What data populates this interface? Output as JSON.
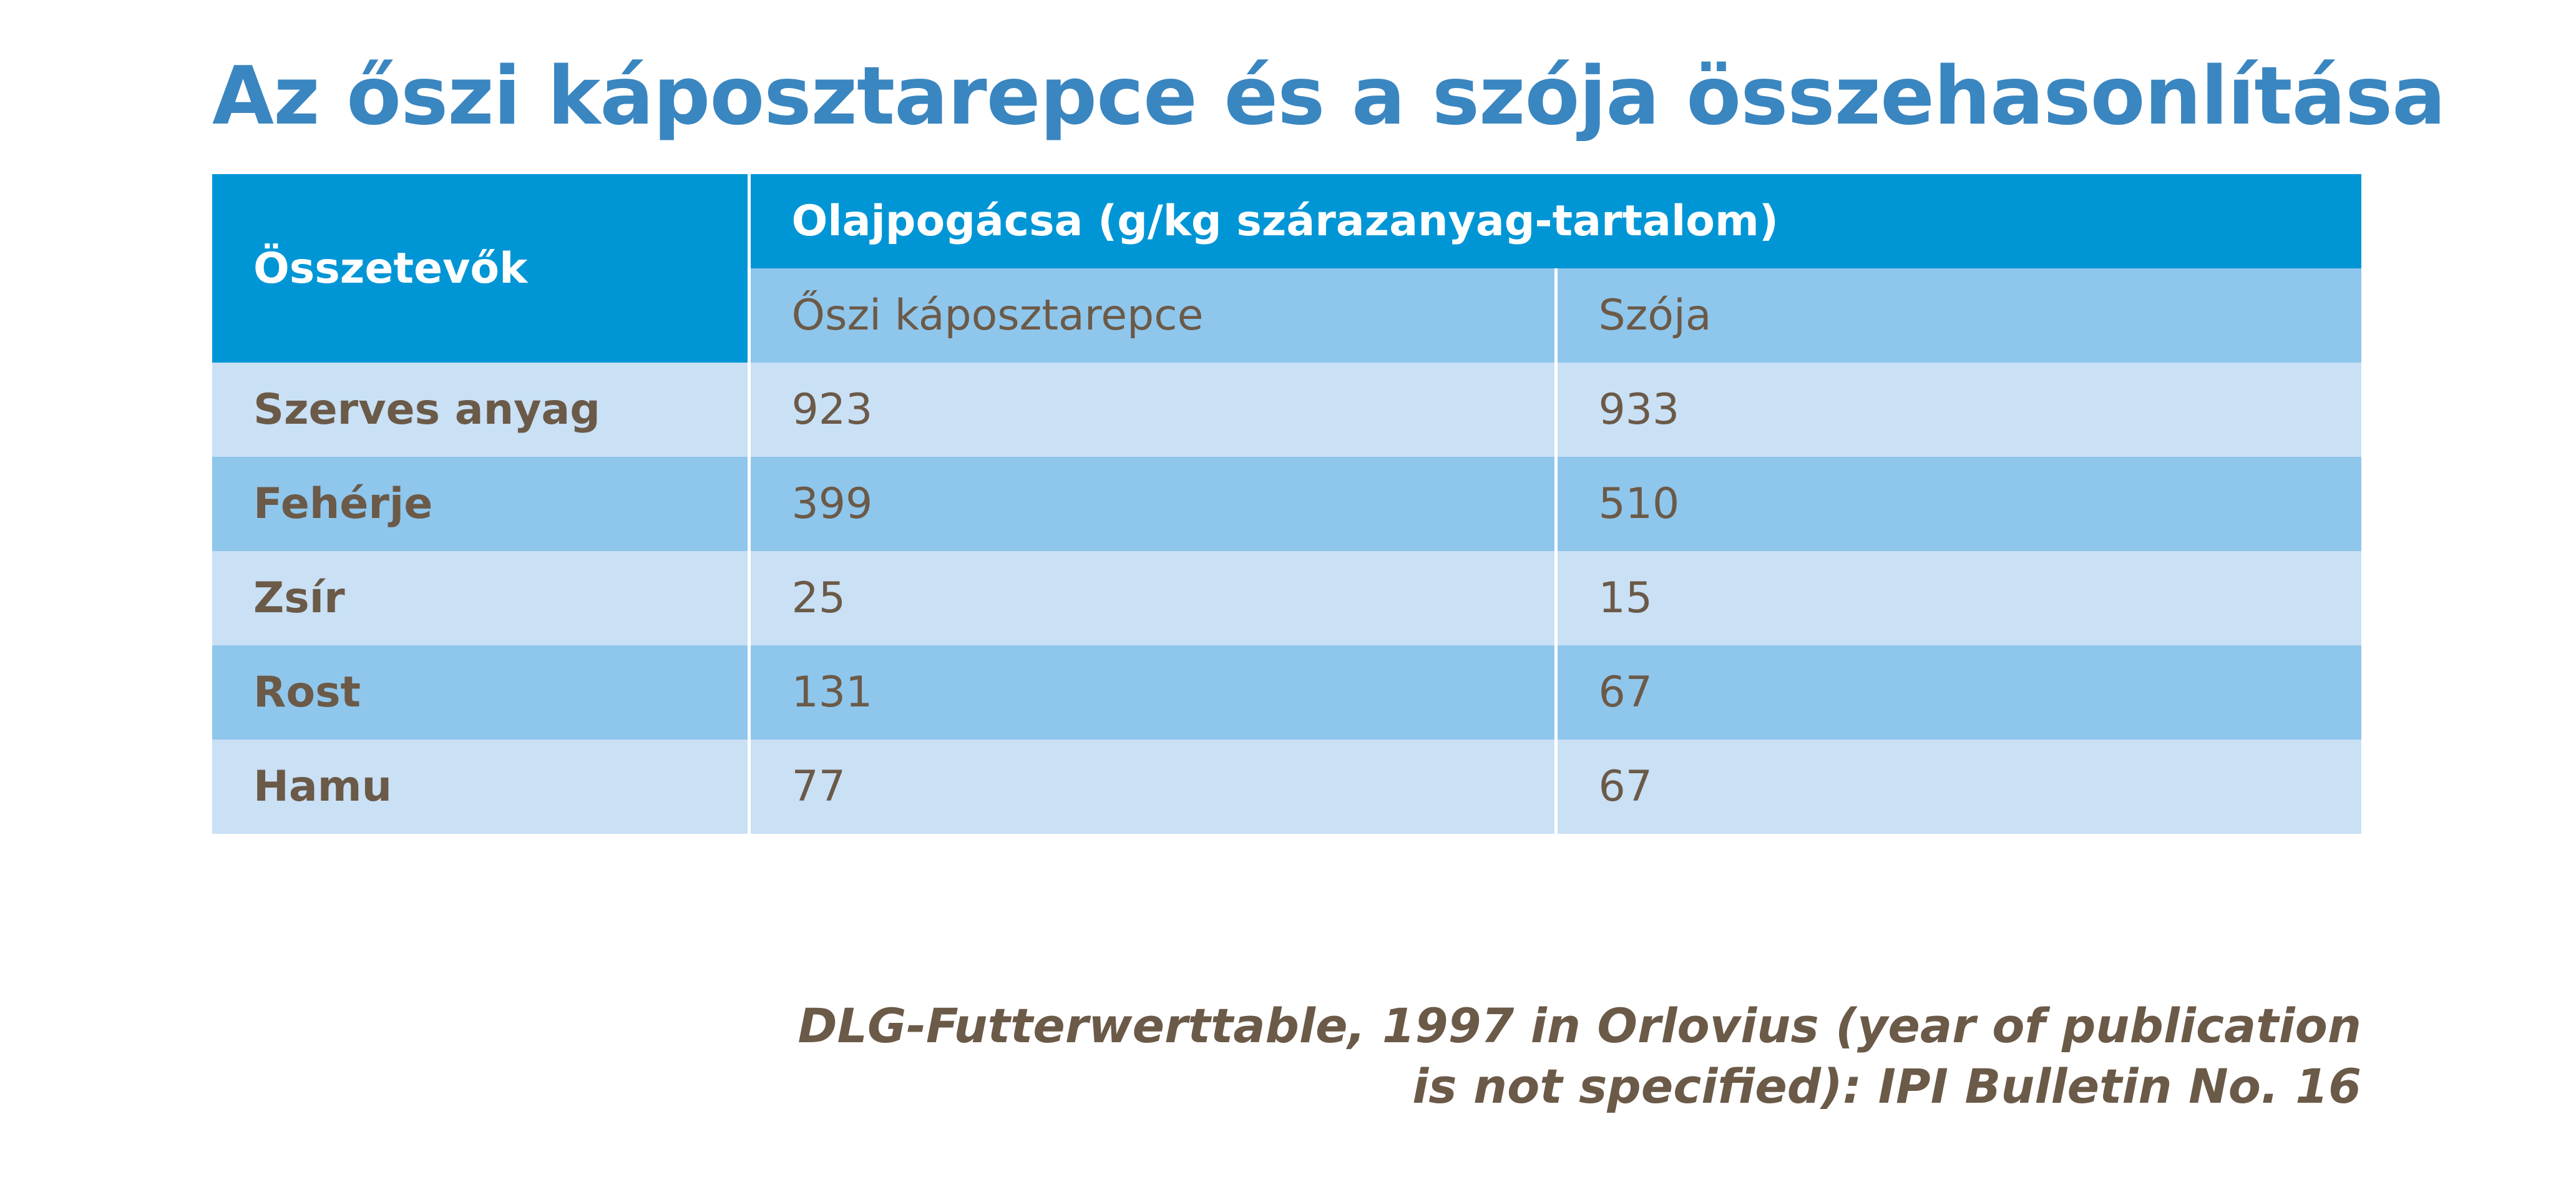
{
  "header": {
    "title": "Az őszi káposztarepce és a szója összehasonlítása"
  },
  "table": {
    "row_header": "Összetevők",
    "group_header": "Olajpogácsa (g/kg szárazanyag-tartalom)",
    "columns": [
      "Őszi káposztarepce",
      "Szója"
    ],
    "rows": [
      [
        "Szerves anyag",
        923,
        933
      ],
      [
        "Fehérje",
        399,
        510
      ],
      [
        "Zsír",
        25,
        15
      ],
      [
        "Rost",
        131,
        67
      ],
      [
        "Hamu",
        77,
        67
      ]
    ]
  },
  "footer": {
    "source": "DLG-Futterwerttable, 1997 in Orlovius (year of publication is not specified): IPI Bulletin No. 16"
  }
}
